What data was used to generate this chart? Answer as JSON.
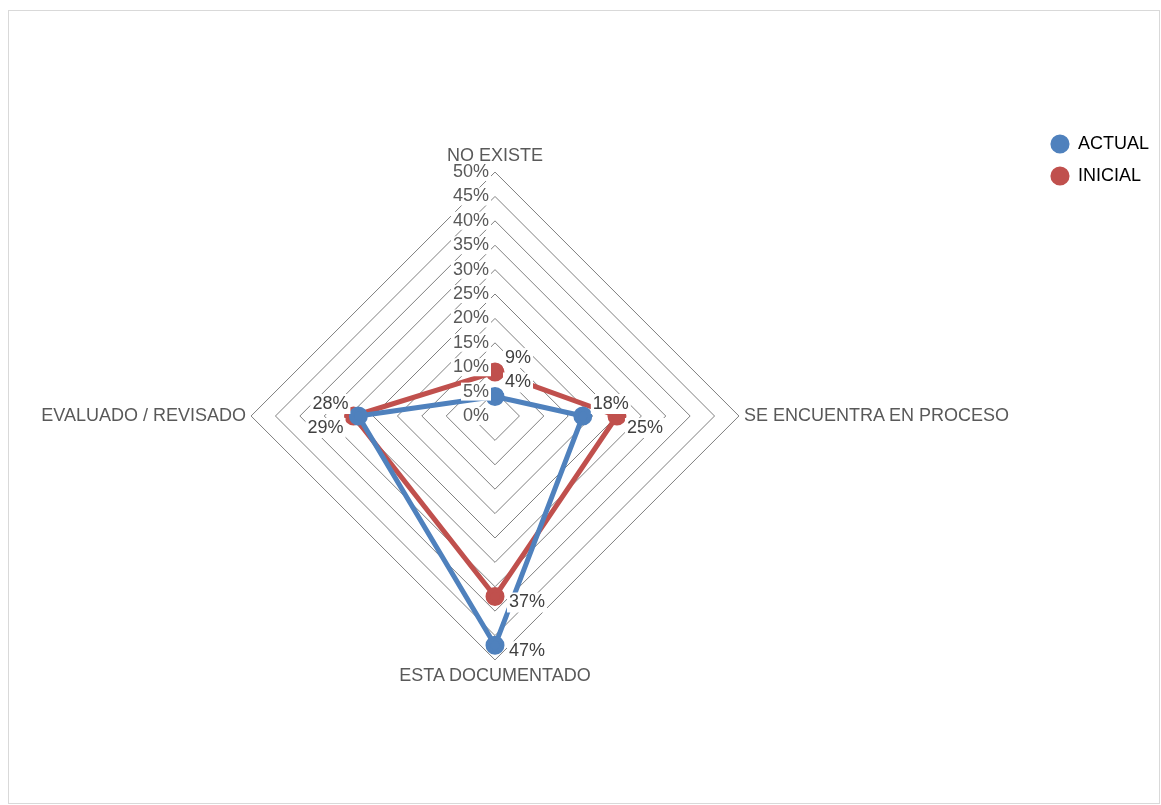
{
  "chart_data": {
    "type": "radar",
    "categories": [
      "NO EXISTE",
      "SE ENCUENTRA EN PROCESO",
      "ESTA DOCUMENTADO",
      "EVALUADO / REVISADO"
    ],
    "series": [
      {
        "name": "ACTUAL",
        "color": "#4f81bd",
        "values": [
          4,
          18,
          47,
          28
        ],
        "value_labels": [
          "4%",
          "18%",
          "47%",
          "28%"
        ]
      },
      {
        "name": "INICIAL",
        "color": "#c0504d",
        "values": [
          9,
          25,
          37,
          29
        ],
        "value_labels": [
          "9%",
          "25%",
          "37%",
          "29%"
        ]
      }
    ],
    "ylim": [
      0,
      50
    ],
    "yticks": [
      {
        "value": 0,
        "label": "0%"
      },
      {
        "value": 5,
        "label": "5%"
      },
      {
        "value": 10,
        "label": "10%"
      },
      {
        "value": 15,
        "label": "15%"
      },
      {
        "value": 20,
        "label": "20%"
      },
      {
        "value": 25,
        "label": "25%"
      },
      {
        "value": 30,
        "label": "30%"
      },
      {
        "value": 35,
        "label": "35%"
      },
      {
        "value": 40,
        "label": "40%"
      },
      {
        "value": 45,
        "label": "45%"
      },
      {
        "value": 50,
        "label": "50%"
      }
    ],
    "grid": true,
    "legend": "right",
    "marker": "circle"
  }
}
